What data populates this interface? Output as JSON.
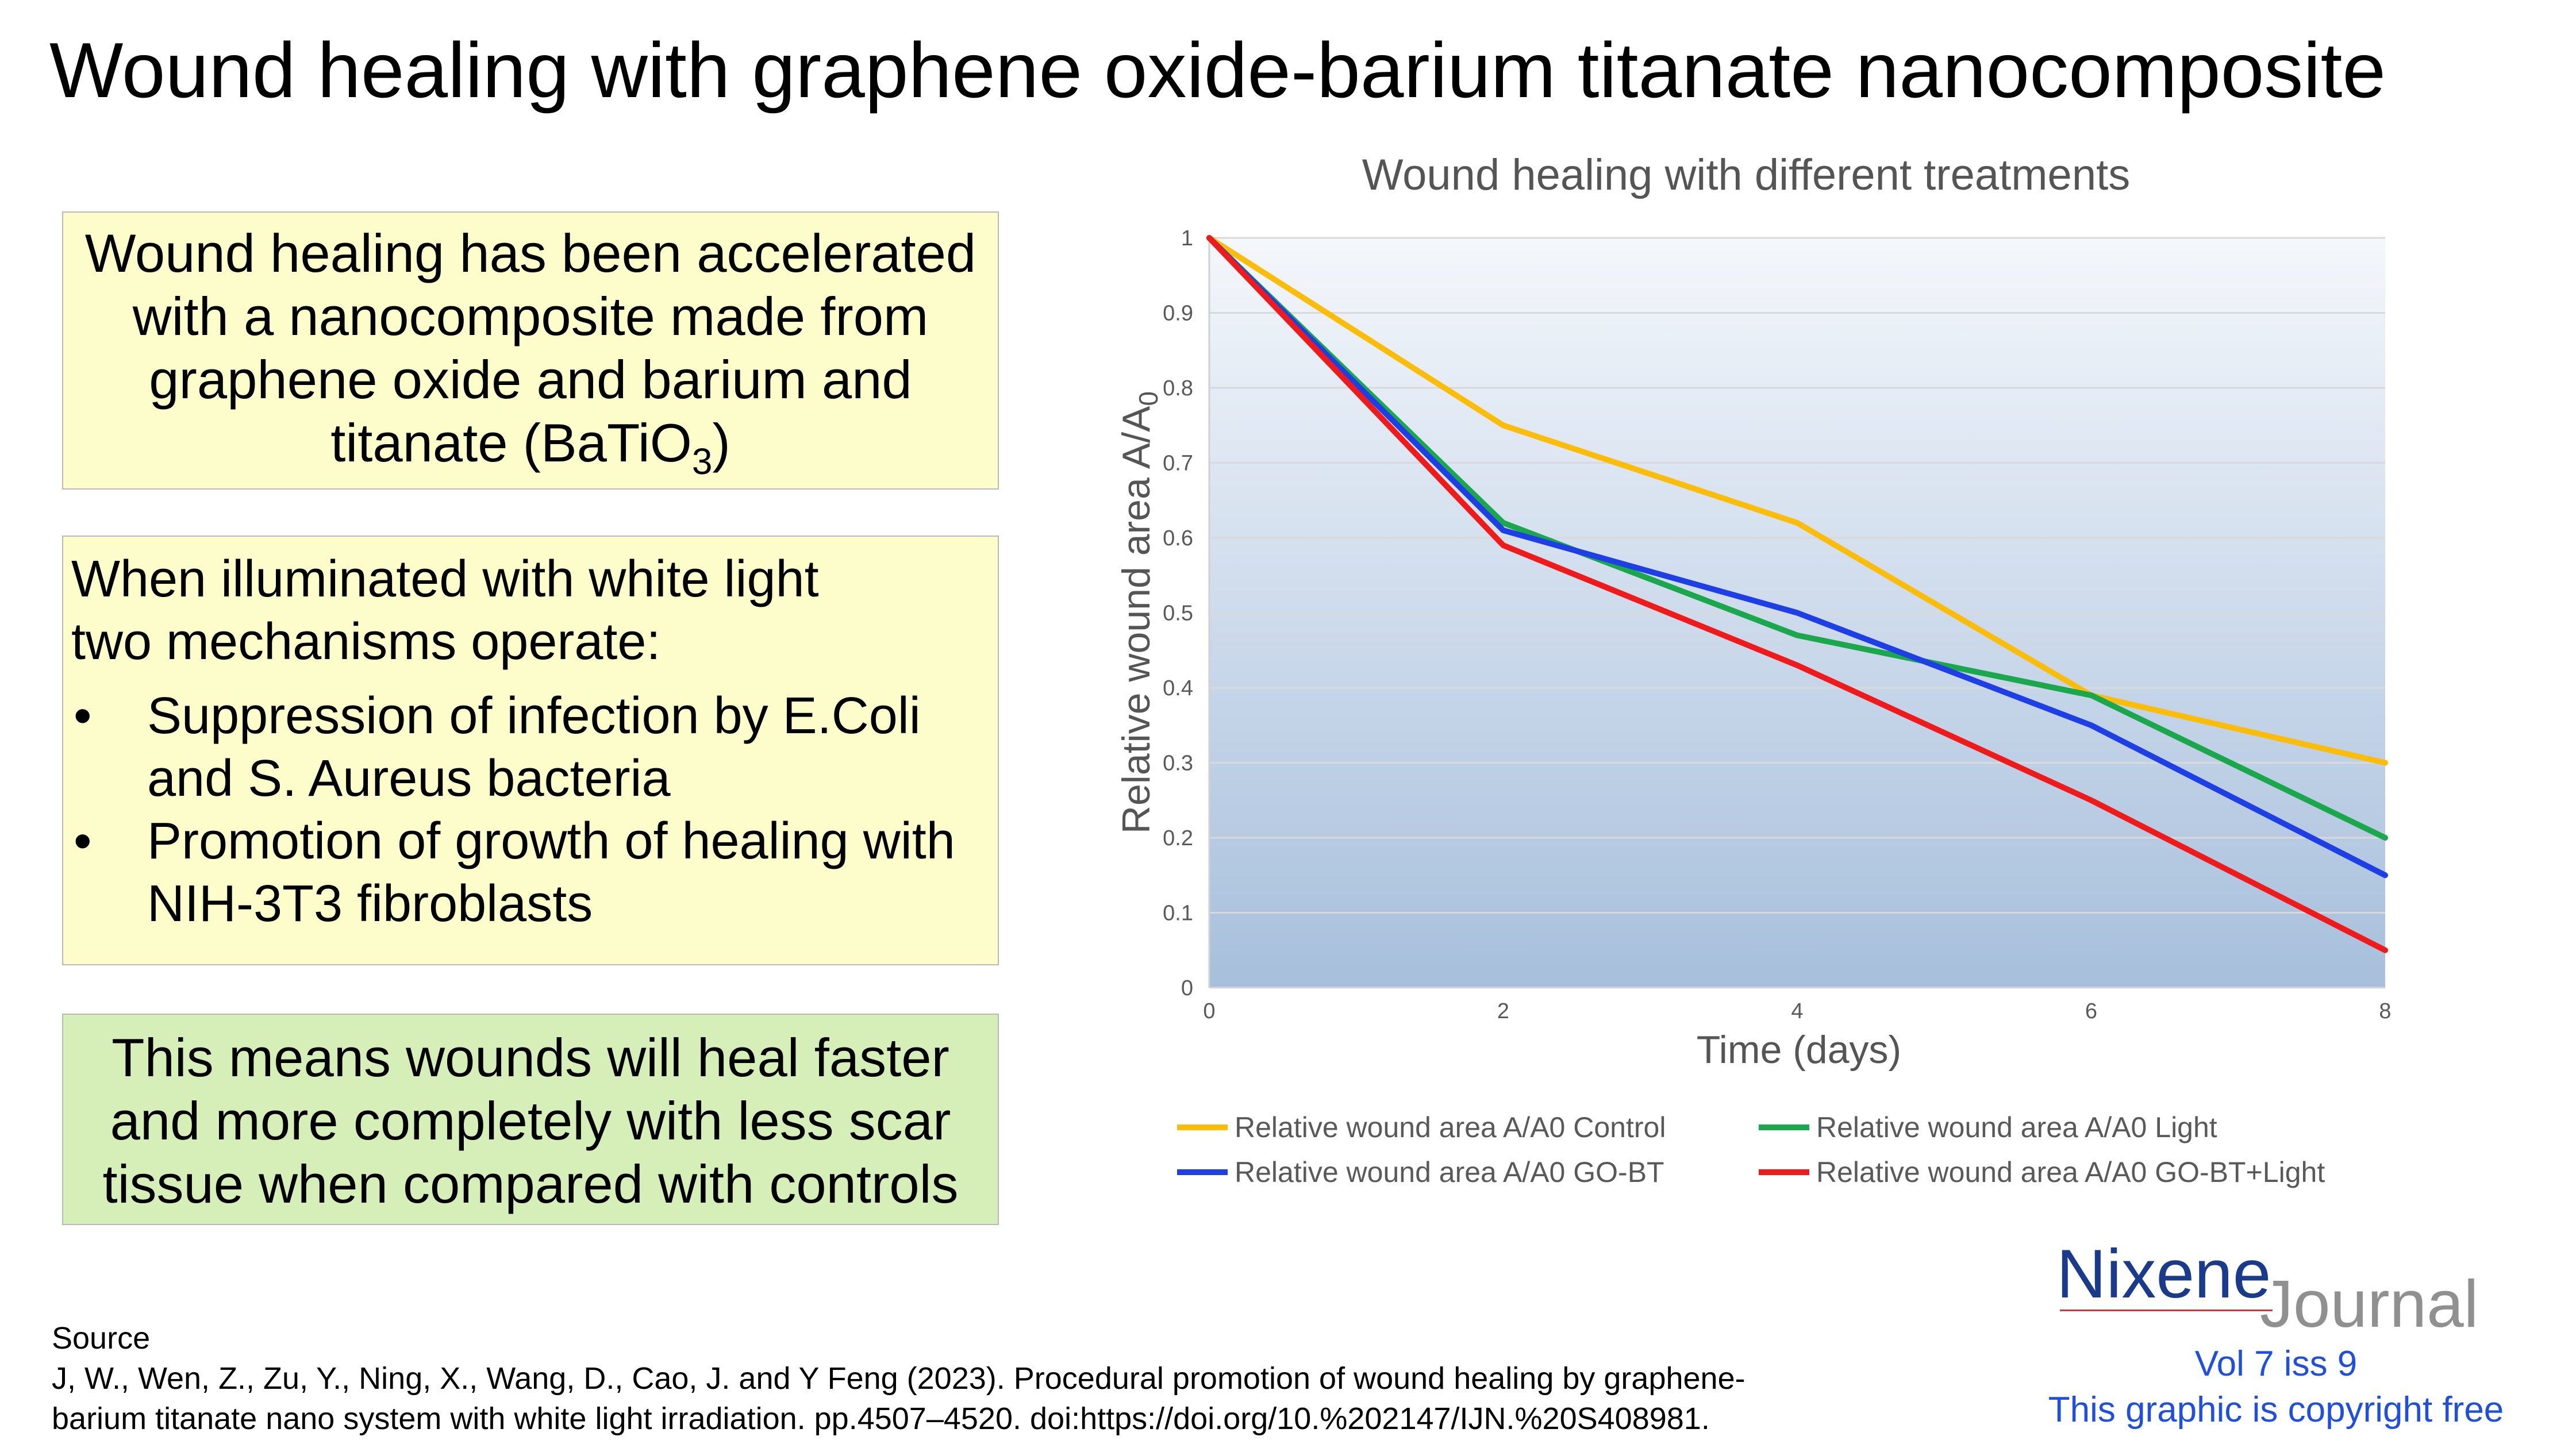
{
  "title": "Wound healing with graphene oxide-barium titanate nanocomposite",
  "box1": {
    "lines": [
      "Wound healing has been accelerated",
      "with a nanocomposite made from",
      "graphene oxide and  barium and"
    ],
    "last_pre": "titanate (BaTiO",
    "last_sub": "3",
    "last_post": ")"
  },
  "box2": {
    "intro1": "When illuminated with white light",
    "intro2": "two mechanisms operate:",
    "bullet": "•",
    "bullets": [
      {
        "line1": "Suppression of infection by E.Coli",
        "line2": "and S. Aureus bacteria"
      },
      {
        "line1": "Promotion of growth of healing with",
        "line2": "NIH-3T3 fibroblasts"
      }
    ]
  },
  "box3": {
    "lines": [
      "This means wounds will heal faster",
      "and more completely with less scar",
      "tissue when compared with controls"
    ]
  },
  "chart_data": {
    "type": "line",
    "title": "Wound healing with different treatments",
    "xlabel": "Time (days)",
    "ylabel": "Relative wound area A/A",
    "ylabel_sub": "0",
    "x": [
      0,
      2,
      4,
      6,
      8
    ],
    "xlim": [
      0,
      8
    ],
    "ylim": [
      0,
      1
    ],
    "xticks": [
      0,
      2,
      4,
      6,
      8
    ],
    "yticks": [
      0,
      0.1,
      0.2,
      0.3,
      0.4,
      0.5,
      0.6,
      0.7,
      0.8,
      0.9,
      1
    ],
    "grid": true,
    "legend_position": "bottom",
    "series": [
      {
        "name": "Relative wound area A/A0 Control",
        "color": "#fbbc0a",
        "values": [
          1,
          0.75,
          0.62,
          0.39,
          0.3
        ]
      },
      {
        "name": "Relative wound area A/A0 Light",
        "color": "#1ba84d",
        "values": [
          1,
          0.62,
          0.47,
          0.39,
          0.2
        ]
      },
      {
        "name": "Relative wound area A/A0 GO-BT",
        "color": "#1e3fe6",
        "values": [
          1,
          0.61,
          0.5,
          0.35,
          0.15
        ]
      },
      {
        "name": "Relative wound area A/A0 GO-BT+Light",
        "color": "#ef1b1b",
        "values": [
          1,
          0.59,
          0.43,
          0.25,
          0.05
        ]
      }
    ]
  },
  "source": {
    "label": "Source",
    "line1": "J, W., Wen, Z., Zu, Y., Ning, X., Wang, D., Cao, J. and Y Feng (2023). Procedural promotion of wound healing by graphene-",
    "line2": "barium titanate nano system with white light irradiation. pp.4507–4520. doi:https://doi.org/10.%202147/IJN.%20S408981."
  },
  "branding": {
    "name": "Nixene",
    "journal": "Journal",
    "volume": "Vol 7 iss 9",
    "copyright": "This graphic is copyright free"
  }
}
